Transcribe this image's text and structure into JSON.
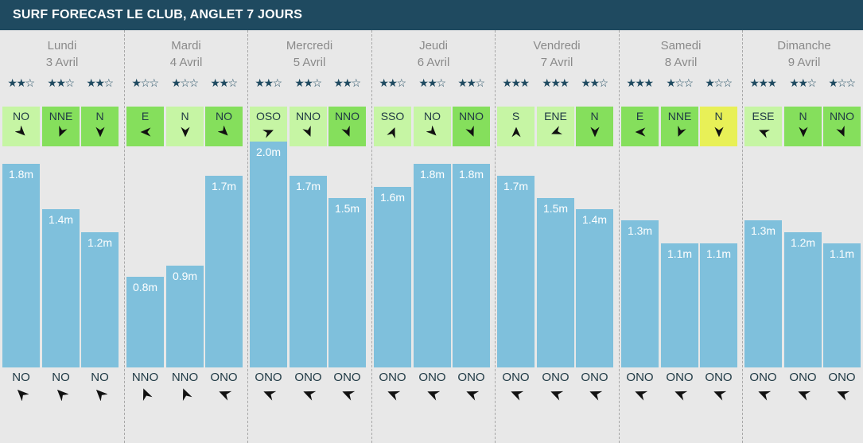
{
  "header": {
    "title": "SURF FORECAST LE CLUB, ANGLET 7 JOURS"
  },
  "colors": {
    "header_bg": "#1f4a60",
    "wind_light": "#c6f5a4",
    "wind_medium": "#85df5c",
    "wind_strong": "#e8f057",
    "bar": "#7fc0dc",
    "arrow": "#111111",
    "star": "#1f4a60"
  },
  "chart_data": {
    "type": "bar",
    "title": "SURF FORECAST LE CLUB, ANGLET 7 JOURS",
    "unit": "m",
    "ylim": [
      0,
      2.0
    ],
    "days": [
      {
        "name": "Lundi",
        "date": "3 Avril",
        "slots": [
          {
            "stars": 2,
            "wind_dir": "NO",
            "wind_color": "light",
            "wave": 1.8,
            "wave_label": "1.8m",
            "swell_dir": "NO"
          },
          {
            "stars": 2,
            "wind_dir": "NNE",
            "wind_color": "medium",
            "wave": 1.4,
            "wave_label": "1.4m",
            "swell_dir": "NO"
          },
          {
            "stars": 2,
            "wind_dir": "N",
            "wind_color": "medium",
            "wave": 1.2,
            "wave_label": "1.2m",
            "swell_dir": "NO"
          }
        ]
      },
      {
        "name": "Mardi",
        "date": "4 Avril",
        "slots": [
          {
            "stars": 1,
            "wind_dir": "E",
            "wind_color": "medium",
            "wave": 0.8,
            "wave_label": "0.8m",
            "swell_dir": "NNO"
          },
          {
            "stars": 1,
            "wind_dir": "N",
            "wind_color": "light",
            "wave": 0.9,
            "wave_label": "0.9m",
            "swell_dir": "NNO"
          },
          {
            "stars": 2,
            "wind_dir": "NO",
            "wind_color": "medium",
            "wave": 1.7,
            "wave_label": "1.7m",
            "swell_dir": "ONO"
          }
        ]
      },
      {
        "name": "Mercredi",
        "date": "5 Avril",
        "slots": [
          {
            "stars": 2,
            "wind_dir": "OSO",
            "wind_color": "light",
            "wave": 2.0,
            "wave_label": "2.0m",
            "swell_dir": "ONO"
          },
          {
            "stars": 2,
            "wind_dir": "NNO",
            "wind_color": "light",
            "wave": 1.7,
            "wave_label": "1.7m",
            "swell_dir": "ONO"
          },
          {
            "stars": 2,
            "wind_dir": "NNO",
            "wind_color": "medium",
            "wave": 1.5,
            "wave_label": "1.5m",
            "swell_dir": "ONO"
          }
        ]
      },
      {
        "name": "Jeudi",
        "date": "6 Avril",
        "slots": [
          {
            "stars": 2,
            "wind_dir": "SSO",
            "wind_color": "light",
            "wave": 1.6,
            "wave_label": "1.6m",
            "swell_dir": "ONO"
          },
          {
            "stars": 2,
            "wind_dir": "NO",
            "wind_color": "light",
            "wave": 1.8,
            "wave_label": "1.8m",
            "swell_dir": "ONO"
          },
          {
            "stars": 2,
            "wind_dir": "NNO",
            "wind_color": "medium",
            "wave": 1.8,
            "wave_label": "1.8m",
            "swell_dir": "ONO"
          }
        ]
      },
      {
        "name": "Vendredi",
        "date": "7 Avril",
        "slots": [
          {
            "stars": 3,
            "wind_dir": "S",
            "wind_color": "light",
            "wave": 1.7,
            "wave_label": "1.7m",
            "swell_dir": "ONO"
          },
          {
            "stars": 3,
            "wind_dir": "ENE",
            "wind_color": "light",
            "wave": 1.5,
            "wave_label": "1.5m",
            "swell_dir": "ONO"
          },
          {
            "stars": 2,
            "wind_dir": "N",
            "wind_color": "medium",
            "wave": 1.4,
            "wave_label": "1.4m",
            "swell_dir": "ONO"
          }
        ]
      },
      {
        "name": "Samedi",
        "date": "8 Avril",
        "slots": [
          {
            "stars": 3,
            "wind_dir": "E",
            "wind_color": "medium",
            "wave": 1.3,
            "wave_label": "1.3m",
            "swell_dir": "ONO"
          },
          {
            "stars": 1,
            "wind_dir": "NNE",
            "wind_color": "medium",
            "wave": 1.1,
            "wave_label": "1.1m",
            "swell_dir": "ONO"
          },
          {
            "stars": 1,
            "wind_dir": "N",
            "wind_color": "strong",
            "wave": 1.1,
            "wave_label": "1.1m",
            "swell_dir": "ONO"
          }
        ]
      },
      {
        "name": "Dimanche",
        "date": "9 Avril",
        "slots": [
          {
            "stars": 3,
            "wind_dir": "ESE",
            "wind_color": "light",
            "wave": 1.3,
            "wave_label": "1.3m",
            "swell_dir": "ONO"
          },
          {
            "stars": 2,
            "wind_dir": "N",
            "wind_color": "medium",
            "wave": 1.2,
            "wave_label": "1.2m",
            "swell_dir": "ONO"
          },
          {
            "stars": 1,
            "wind_dir": "NNO",
            "wind_color": "medium",
            "wave": 1.1,
            "wave_label": "1.1m",
            "swell_dir": "ONO"
          }
        ]
      }
    ]
  }
}
